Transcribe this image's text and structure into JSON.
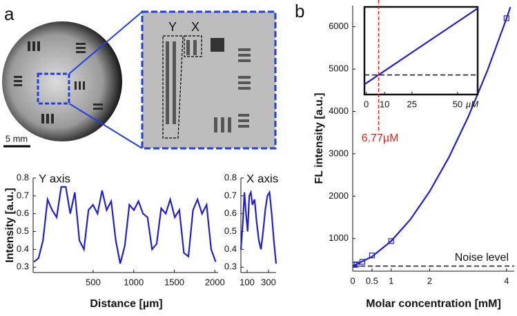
{
  "figure": {
    "panel_labels": [
      "a",
      "b"
    ],
    "scale_bar": "5 mm",
    "roi_labels": [
      "Y",
      "X"
    ]
  },
  "chart_data": [
    {
      "type": "line",
      "title": "Y axis",
      "xlabel": "Distance [µm]",
      "ylabel": "Intensity [a.u.]",
      "x": [
        -230,
        -174,
        -118,
        -62,
        -6,
        50,
        106,
        162,
        218,
        274,
        330,
        386,
        442,
        498,
        554,
        610,
        666,
        722,
        778,
        834,
        890,
        946,
        1002,
        1058,
        1114,
        1170,
        1226,
        1282,
        1338,
        1394,
        1450,
        1506,
        1562,
        1618,
        1674,
        1730,
        1786,
        1842,
        1898,
        1954,
        2010
      ],
      "values": [
        0.33,
        0.35,
        0.45,
        0.68,
        0.62,
        0.58,
        0.75,
        0.75,
        0.6,
        0.72,
        0.45,
        0.4,
        0.62,
        0.65,
        0.6,
        0.73,
        0.62,
        0.67,
        0.45,
        0.32,
        0.42,
        0.65,
        0.62,
        0.67,
        0.6,
        0.58,
        0.4,
        0.43,
        0.63,
        0.6,
        0.68,
        0.58,
        0.62,
        0.38,
        0.36,
        0.62,
        0.68,
        0.6,
        0.65,
        0.4,
        0.33
      ],
      "color": "#1f1fd0",
      "xlim": [
        -240,
        2040
      ],
      "xticks": [
        500,
        1000,
        1500,
        2000
      ],
      "ylim": [
        0.27,
        0.8
      ],
      "yticks": [
        0.3,
        0.4,
        0.5,
        0.6,
        0.7,
        0.8
      ]
    },
    {
      "type": "line",
      "title": "X axis",
      "x": [
        42,
        60,
        75,
        90,
        105,
        120,
        135,
        150,
        170,
        190,
        210,
        230,
        250,
        270,
        290,
        310,
        330,
        350,
        371
      ],
      "values": [
        0.4,
        0.55,
        0.72,
        0.6,
        0.5,
        0.7,
        0.72,
        0.65,
        0.68,
        0.55,
        0.45,
        0.4,
        0.5,
        0.62,
        0.7,
        0.72,
        0.6,
        0.45,
        0.32
      ],
      "color": "#1f1fd0",
      "xlim": [
        42,
        371
      ],
      "xticks": [
        100,
        300
      ],
      "ylim": [
        0.27,
        0.8
      ],
      "yticks": [
        0.3,
        0.4,
        0.5,
        0.6,
        0.7,
        0.8
      ]
    },
    {
      "type": "line",
      "xlabel": "Molar concentration [mM]",
      "ylabel": "FL intensity [a.u.]",
      "series": [
        {
          "color": "#1f1fd0",
          "x": [
            0,
            0.5,
            1,
            1.5,
            2,
            2.5,
            3,
            3.5,
            4,
            4.1
          ],
          "values": [
            350,
            572,
            940,
            1452,
            2111,
            2915,
            3864,
            4959,
            6199,
            6464
          ]
        },
        {
          "color": "#1f1fd0",
          "marker": "square",
          "line": false,
          "x": [
            0.05,
            0.1,
            0.25,
            0.5,
            1,
            4
          ],
          "values": [
            380,
            390,
            450,
            600,
            940,
            6200
          ]
        }
      ],
      "xlim": [
        0,
        4.2
      ],
      "xticks": [
        0,
        0.5,
        1,
        2,
        4
      ],
      "ylim": [
        230,
        6500
      ],
      "yticks": [
        1000,
        2000,
        3000,
        4000,
        5000,
        6000
      ],
      "reference_line": {
        "value": 350,
        "label": "Noise level"
      }
    },
    {
      "type": "line",
      "x": [
        -1,
        61
      ],
      "values": [
        310,
        415
      ],
      "color": "#1f1fd0",
      "xlim": [
        -1,
        61
      ],
      "xticks": [
        0,
        10,
        25,
        50
      ],
      "xunit": "µM",
      "ylim": [
        296,
        417
      ],
      "reference_line": {
        "value": 323
      },
      "annotation": {
        "x": 6.77,
        "label": "6.77µM",
        "color": "#e02020"
      }
    }
  ]
}
